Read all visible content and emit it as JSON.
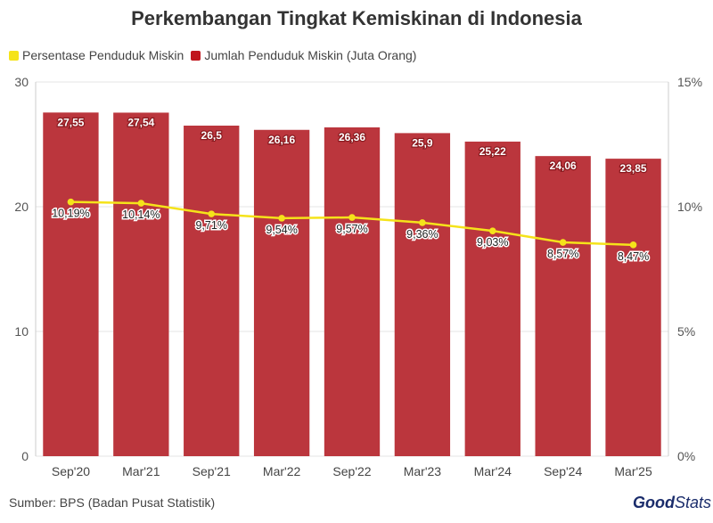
{
  "title": "Perkembangan Tingkat Kemiskinan di Indonesia",
  "legend": [
    {
      "label": "Persentase Penduduk Miskin",
      "color": "#f5e31a"
    },
    {
      "label": "Jumlah Penduduk Miskin (Juta Orang)",
      "color": "#c0161d"
    }
  ],
  "source": "Sumber: BPS (Badan Pusat Statistik)",
  "logo": {
    "brand": "Good",
    "suffix": "Stats"
  },
  "colors": {
    "bar": "#bb363d",
    "line": "#f5e31a",
    "dot": "#f5e31a",
    "grid": "#e6e6e6"
  },
  "chart_data": {
    "type": "bar",
    "title": "Perkembangan Tingkat Kemiskinan di Indonesia",
    "categories": [
      "Sep'20",
      "Mar'21",
      "Sep'21",
      "Mar'22",
      "Sep'22",
      "Mar'23",
      "Mar'24",
      "Sep'24",
      "Mar'25"
    ],
    "series": [
      {
        "name": "Jumlah Penduduk Miskin (Juta Orang)",
        "type": "bar",
        "axis": "left",
        "values": [
          27.55,
          27.54,
          26.5,
          26.16,
          26.36,
          25.9,
          25.22,
          24.06,
          23.85
        ],
        "labels": [
          "27,55",
          "27,54",
          "26,5",
          "26,16",
          "26,36",
          "25,9",
          "25,22",
          "24,06",
          "23,85"
        ]
      },
      {
        "name": "Persentase Penduduk Miskin",
        "type": "line",
        "axis": "right",
        "values": [
          10.19,
          10.14,
          9.71,
          9.54,
          9.57,
          9.36,
          9.03,
          8.57,
          8.47
        ],
        "labels": [
          "10,19%",
          "10,14%",
          "9,71%",
          "9,54%",
          "9,57%",
          "9,36%",
          "9,03%",
          "8,57%",
          "8,47%"
        ]
      }
    ],
    "ylim_left": [
      0,
      30
    ],
    "yticks_left": [
      "0",
      "10",
      "20",
      "30"
    ],
    "ylim_right": [
      0,
      15
    ],
    "yticks_right": [
      "0%",
      "5%",
      "10%",
      "15%"
    ],
    "grid": true,
    "legend_position": "top-left"
  }
}
